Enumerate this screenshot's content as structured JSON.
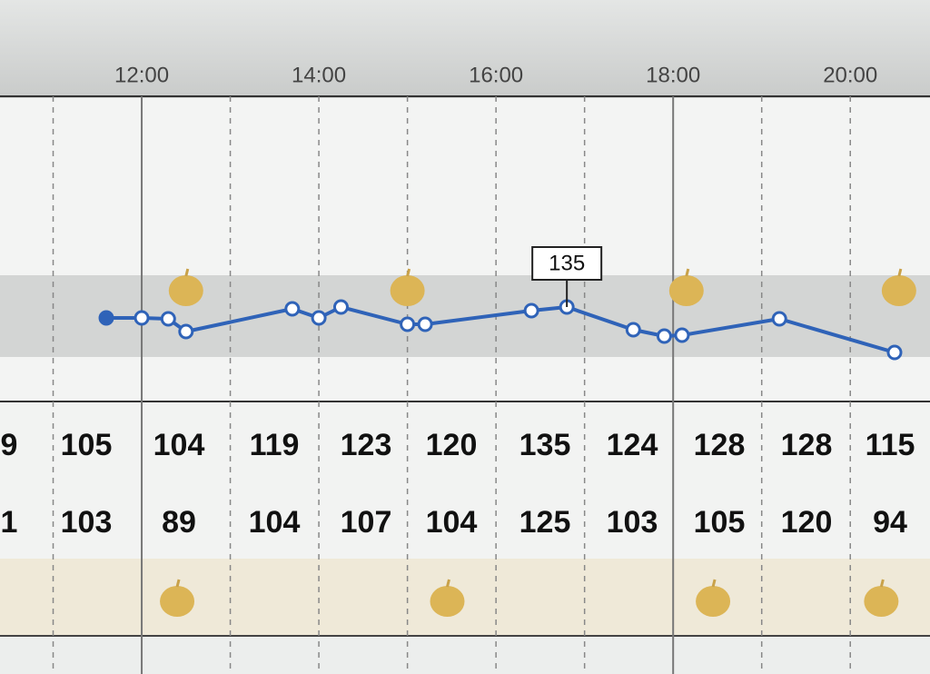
{
  "chart_data": {
    "type": "line",
    "xlim": [
      10.4,
      20.9
    ],
    "xticks": [
      {
        "value": 12,
        "label": "12:00"
      },
      {
        "value": 14,
        "label": "14:00"
      },
      {
        "value": 16,
        "label": "16:00"
      },
      {
        "value": 18,
        "label": "18:00"
      },
      {
        "value": 20,
        "label": "20:00"
      }
    ],
    "hour_lines": [
      11,
      13,
      15,
      17,
      19
    ],
    "solid_lines": [
      12,
      18
    ],
    "ylim": [
      30,
      350
    ],
    "target_range": [
      80,
      170
    ],
    "series": [
      {
        "color": "#2f63b8",
        "x": [
          11.6,
          12.0,
          12.3,
          12.5,
          13.7,
          14.0,
          14.25,
          15.0,
          15.2,
          16.4,
          16.8,
          17.55,
          17.9,
          18.1,
          19.2,
          20.5
        ],
        "values": [
          123,
          123,
          122,
          108,
          133,
          123,
          135,
          116,
          116,
          131,
          135,
          110,
          103,
          104,
          122,
          85
        ]
      }
    ],
    "annotation": {
      "x": 16.8,
      "value": 135
    },
    "meals": [
      12.5,
      15.0,
      18.15,
      20.55
    ],
    "rows": [
      [
        "9",
        "105",
        "104",
        "119",
        "123",
        "120",
        "135",
        "124",
        "128",
        "128",
        "115"
      ],
      [
        "1",
        "103",
        "89",
        "104",
        "107",
        "104",
        "125",
        "103",
        "105",
        "120",
        "94"
      ]
    ],
    "row_meals": [
      12.4,
      15.45,
      18.45,
      20.35
    ]
  }
}
